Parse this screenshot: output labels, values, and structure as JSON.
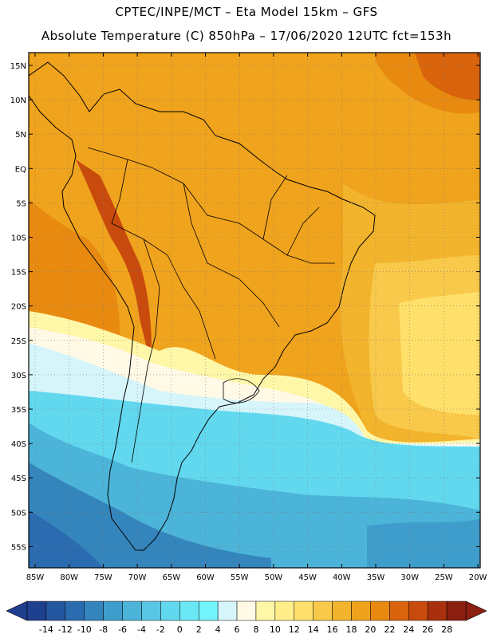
{
  "header": {
    "line1": "CPTEC/INPE/MCT –  Eta Model 15km – GFS",
    "line2": "Absolute Temperature (C) 850hPa – 17/06/2020 12UTC fct=153h"
  },
  "axes": {
    "lat_labels": [
      "15N",
      "10N",
      "5N",
      "EQ",
      "5S",
      "10S",
      "15S",
      "20S",
      "25S",
      "30S",
      "35S",
      "40S",
      "45S",
      "50S",
      "55S"
    ],
    "lon_labels": [
      "85W",
      "80W",
      "75W",
      "70W",
      "65W",
      "60W",
      "55W",
      "50W",
      "45W",
      "40W",
      "35W",
      "30W",
      "25W",
      "20W"
    ]
  },
  "colorbar": {
    "labels": [
      "-14",
      "-12",
      "-10",
      "-8",
      "-6",
      "-4",
      "-2",
      "0",
      "2",
      "4",
      "6",
      "8",
      "10",
      "12",
      "14",
      "16",
      "18",
      "20",
      "22",
      "24",
      "26",
      "28"
    ],
    "colors": [
      "#1f3f8f",
      "#2456a0",
      "#2b6cb0",
      "#3585bd",
      "#3e9dcb",
      "#4cb4d8",
      "#59c7e4",
      "#62d8ee",
      "#6ae8f6",
      "#73f4fb",
      "#d6f5fb",
      "#fff9e6",
      "#fff7a8",
      "#ffee8a",
      "#ffe06a",
      "#f8c94a",
      "#f2b42c",
      "#efa21c",
      "#e88a10",
      "#d9640c",
      "#c84a0c",
      "#a8300e",
      "#8b1f10"
    ]
  },
  "colors": {
    "land_warm": "#f0a31c",
    "land_hot": "#d9640c",
    "sea_cold": "#3e9dcb",
    "sea_deep": "#2b6cb0",
    "border": "#000000"
  }
}
